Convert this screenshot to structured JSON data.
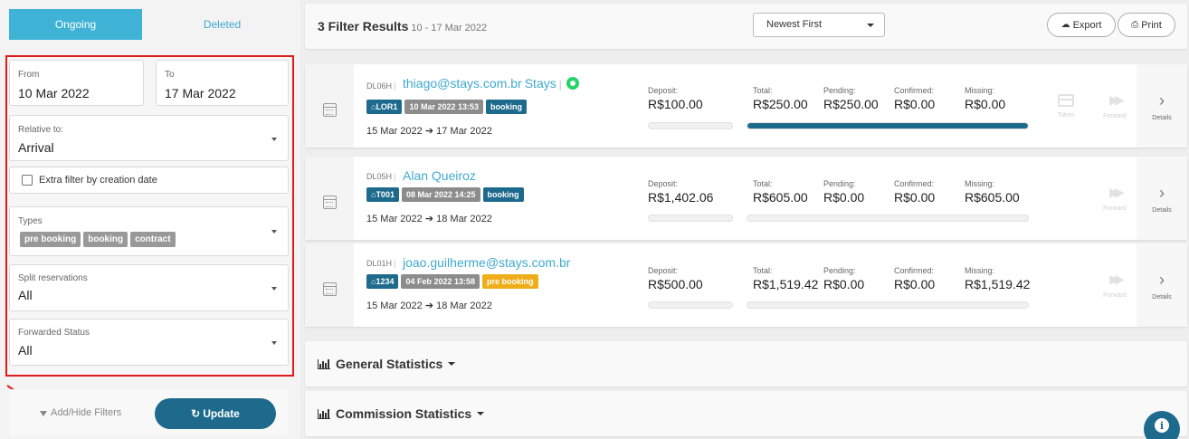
{
  "sidebar": {
    "tabs": [
      {
        "label": "Ongoing",
        "active": true
      },
      {
        "label": "Deleted",
        "active": false
      }
    ],
    "filters": {
      "from": {
        "label": "From",
        "value": "10 Mar 2022"
      },
      "to": {
        "label": "To",
        "value": "17 Mar 2022"
      },
      "relative_to": {
        "label": "Relative to:",
        "value": "Arrival"
      },
      "extra_filter": {
        "label": "Extra filter by creation date",
        "checked": false
      },
      "types": {
        "label": "Types",
        "tags": [
          "pre booking",
          "booking",
          "contract"
        ]
      },
      "split": {
        "label": "Split reservations",
        "value": "All"
      },
      "forwarded": {
        "label": "Forwarded Status",
        "value": "All"
      }
    },
    "add_hide_label": "Add/Hide Filters",
    "update_label": "Update"
  },
  "header": {
    "results_title": "3 Filter Results",
    "results_range": "10 - 17 Mar 2022",
    "sort_value": "Newest First",
    "export_label": "Export",
    "print_label": "Print"
  },
  "reservations": [
    {
      "code": "DL06H",
      "guest": "thiago@stays.com.br",
      "guest_suffix": "Stays",
      "whatsapp": true,
      "badges": [
        {
          "text": "LOR1",
          "style": "blue",
          "home": true
        },
        {
          "text": "10 Mar 2022 13:53",
          "style": "gray"
        },
        {
          "text": "booking",
          "style": "blue"
        }
      ],
      "checkin": "15 Mar 2022",
      "checkout": "17 Mar 2022",
      "deposit_label": "Deposit:",
      "deposit": "R$100.00",
      "total_label": "Total:",
      "total": "R$250.00",
      "pending_label": "Pending:",
      "pending": "R$250.00",
      "confirmed_label": "Confirmed:",
      "confirmed": "R$0.00",
      "missing_label": "Missing:",
      "missing": "R$0.00",
      "deposit_progress": 0,
      "total_progress": 1,
      "token_label": "Token",
      "forward_label": "Forward",
      "details_label": "Details"
    },
    {
      "code": "DL05H",
      "guest": "Alan Queiroz",
      "guest_suffix": "",
      "whatsapp": false,
      "badges": [
        {
          "text": "T001",
          "style": "blue",
          "home": true
        },
        {
          "text": "08 Mar 2022 14:25",
          "style": "gray"
        },
        {
          "text": "booking",
          "style": "blue"
        }
      ],
      "checkin": "15 Mar 2022",
      "checkout": "18 Mar 2022",
      "deposit_label": "Deposit:",
      "deposit": "R$1,402.06",
      "total_label": "Total:",
      "total": "R$605.00",
      "pending_label": "Pending:",
      "pending": "R$0.00",
      "confirmed_label": "Confirmed:",
      "confirmed": "R$0.00",
      "missing_label": "Missing:",
      "missing": "R$605.00",
      "deposit_progress": 0,
      "total_progress": 0,
      "forward_label": "Forward",
      "details_label": "Details"
    },
    {
      "code": "DL01H",
      "guest": "joao.guilherme@stays.com.br",
      "guest_suffix": "",
      "whatsapp": false,
      "badges": [
        {
          "text": "1234",
          "style": "blue",
          "home": true
        },
        {
          "text": "04 Feb 2022 13:58",
          "style": "gray"
        },
        {
          "text": "pre booking",
          "style": "orange"
        }
      ],
      "checkin": "15 Mar 2022",
      "checkout": "18 Mar 2022",
      "deposit_label": "Deposit:",
      "deposit": "R$500.00",
      "total_label": "Total:",
      "total": "R$1,519.42",
      "pending_label": "Pending:",
      "pending": "R$0.00",
      "confirmed_label": "Confirmed:",
      "confirmed": "R$0.00",
      "missing_label": "Missing:",
      "missing": "R$1,519.42",
      "deposit_progress": 0,
      "total_progress": 0,
      "forward_label": "Forward",
      "details_label": "Details"
    }
  ],
  "sections": {
    "general": "General Statistics",
    "commission": "Commission Statistics"
  },
  "colors": {
    "accent_light": "#3fb3d6",
    "accent_dark": "#1d6a8c",
    "highlight_border": "#e11b1b",
    "prebooking": "#f0ad1a"
  }
}
